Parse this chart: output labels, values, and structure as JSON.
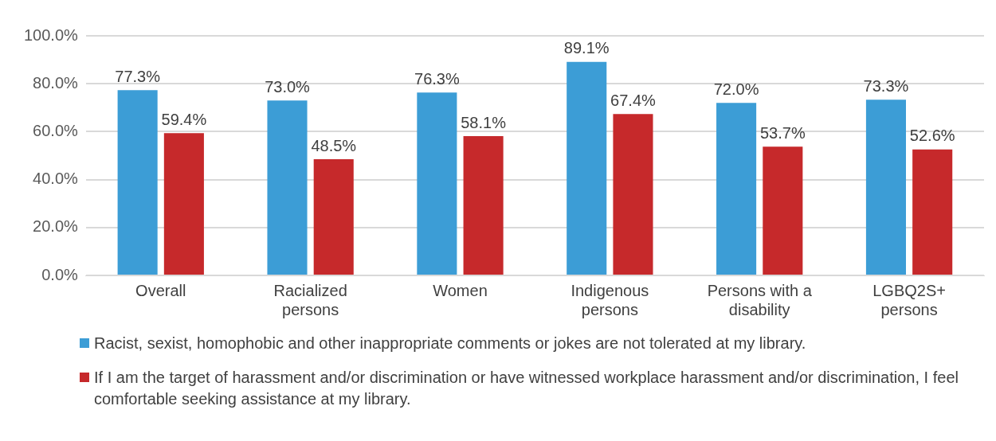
{
  "chart_data": {
    "type": "bar",
    "categories": [
      "Overall",
      "Racialized persons",
      "Women",
      "Indigenous persons",
      "Persons with a disability",
      "LGBQ2S+ persons"
    ],
    "series": [
      {
        "name": "Racist, sexist, homophobic and other inappropriate comments or jokes are not tolerated at my library.",
        "color": "#3c9dd6",
        "values": [
          77.3,
          73.0,
          76.3,
          89.1,
          72.0,
          73.3
        ],
        "value_labels": [
          "77.3%",
          "73.0%",
          "76.3%",
          "89.1%",
          "72.0%",
          "73.3%"
        ]
      },
      {
        "name": "If I am the target of harassment and/or discrimination or have witnessed workplace harassment and/or discrimination, I feel comfortable seeking assistance at my library.",
        "color": "#c6292b",
        "values": [
          59.4,
          48.5,
          58.1,
          67.4,
          53.7,
          52.6
        ],
        "value_labels": [
          "59.4%",
          "48.5%",
          "58.1%",
          "67.4%",
          "53.7%",
          "52.6%"
        ]
      }
    ],
    "ylim": [
      0,
      100
    ],
    "yticks": [
      {
        "value": 0,
        "label": "0.0%"
      },
      {
        "value": 20,
        "label": "20.0%"
      },
      {
        "value": 40,
        "label": "40.0%"
      },
      {
        "value": 60,
        "label": "60.0%"
      },
      {
        "value": 80,
        "label": "80.0%"
      },
      {
        "value": 100,
        "label": "100.0%"
      }
    ],
    "grid": "y",
    "legend": "bottom"
  }
}
